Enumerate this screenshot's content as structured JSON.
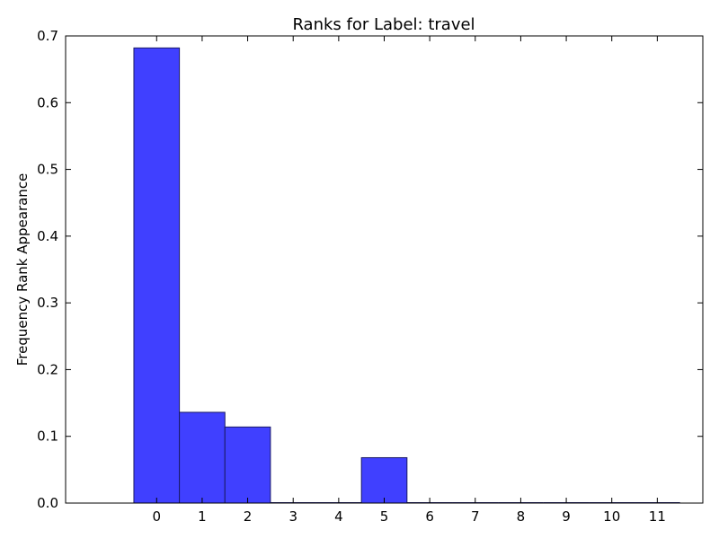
{
  "chart_data": {
    "type": "bar",
    "title": "Ranks for Label: travel",
    "xlabel": "",
    "ylabel": "Frequency Rank Appearance",
    "categories": [
      "0",
      "1",
      "2",
      "3",
      "4",
      "5",
      "6",
      "7",
      "8",
      "9",
      "10",
      "11"
    ],
    "values": [
      0.682,
      0.136,
      0.114,
      0.0,
      0.0,
      0.068,
      0.0,
      0.0,
      0.0,
      0.0,
      0.0,
      0.0
    ],
    "ylim": [
      0,
      0.7
    ],
    "yticks": [
      "0.0",
      "0.1",
      "0.2",
      "0.3",
      "0.4",
      "0.5",
      "0.6",
      "0.7"
    ],
    "xlim": [
      -2,
      12
    ],
    "grid": false,
    "bar_color": "#4040ff",
    "edge_color": "#1a1a66"
  }
}
